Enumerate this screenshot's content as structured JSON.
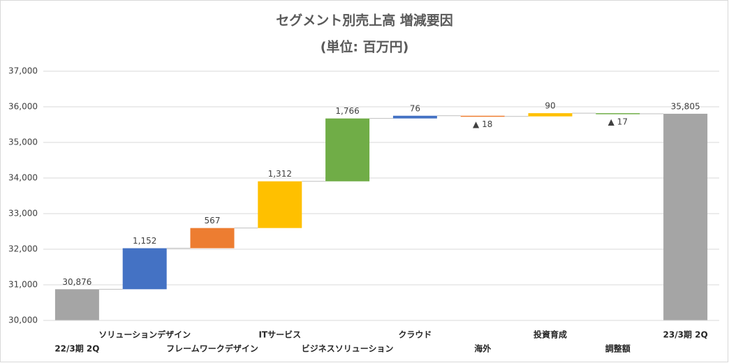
{
  "chart_data": {
    "type": "waterfall",
    "title": "セグメント別売上高 増減要因",
    "subtitle": "(単位: 百万円)",
    "categories": [
      "22/3期 2Q",
      "ソリューションデザイン",
      "フレームワークデザイン",
      "ITサービス",
      "ビジネスソリューション",
      "クラウド",
      "海外",
      "投資育成",
      "調整額",
      "23/3期 2Q"
    ],
    "values": [
      30876,
      1152,
      567,
      1312,
      1766,
      76,
      -18,
      90,
      -17,
      35805
    ],
    "value_labels": [
      "30,876",
      "1,152",
      "567",
      "1,312",
      "1,766",
      "76",
      "▲ 18",
      "90",
      "▲ 17",
      "35,805"
    ],
    "totals": [
      true,
      false,
      false,
      false,
      false,
      false,
      false,
      false,
      false,
      true
    ],
    "colors": [
      "#a5a5a5",
      "#4472c4",
      "#ed7d31",
      "#ffc000",
      "#70ad47",
      "#4472c4",
      "#ed7d31",
      "#ffc000",
      "#70ad47",
      "#a5a5a5"
    ],
    "ylim": [
      30000,
      37000
    ],
    "yticks": [
      {
        "value": 30000,
        "label": "30,000"
      },
      {
        "value": 31000,
        "label": "31,000"
      },
      {
        "value": 32000,
        "label": "32,000"
      },
      {
        "value": 33000,
        "label": "33,000"
      },
      {
        "value": 34000,
        "label": "34,000"
      },
      {
        "value": 35000,
        "label": "35,000"
      },
      {
        "value": 36000,
        "label": "36,000"
      },
      {
        "value": 37000,
        "label": "37,000"
      }
    ],
    "grid": true
  }
}
